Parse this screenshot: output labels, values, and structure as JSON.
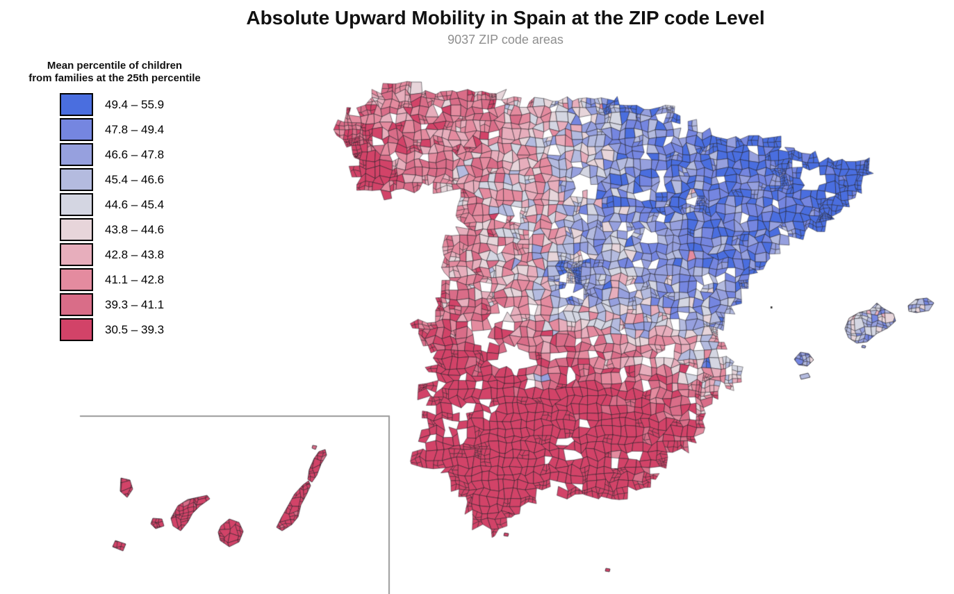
{
  "header": {
    "title": "Absolute Upward Mobility in Spain at the ZIP code Level",
    "subtitle": "9037 ZIP code areas"
  },
  "legend": {
    "title_line1": "Mean percentile of children",
    "title_line2": "from families at the 25th percentile"
  },
  "chart_data": {
    "type": "choropleth",
    "title": "Absolute Upward Mobility in Spain at the ZIP code Level",
    "subtitle": "9037 ZIP code areas",
    "variable": "Mean percentile of children from families at the 25th percentile",
    "n_areas": 9037,
    "unit": "ZIP code areas",
    "region": "Spain (mainland, Balearic Islands, Ceuta, Melilla; Canary Islands in bottom-left inset)",
    "legend_position": "upper-left",
    "value_range": [
      30.5,
      55.9
    ],
    "bins": [
      {
        "range": "49.4 – 55.9",
        "min": 49.4,
        "max": 55.9,
        "color": "#4a6edf"
      },
      {
        "range": "47.8 – 49.4",
        "min": 47.8,
        "max": 49.4,
        "color": "#7586e0"
      },
      {
        "range": "46.6 – 47.8",
        "min": 46.6,
        "max": 47.8,
        "color": "#96a0de"
      },
      {
        "range": "45.4 – 46.6",
        "min": 45.4,
        "max": 46.6,
        "color": "#b4bbdf"
      },
      {
        "range": "44.6 – 45.4",
        "min": 44.6,
        "max": 45.4,
        "color": "#d4d6e2"
      },
      {
        "range": "43.8 – 44.6",
        "min": 43.8,
        "max": 44.6,
        "color": "#e7d5da"
      },
      {
        "range": "42.8 – 43.8",
        "min": 42.8,
        "max": 43.8,
        "color": "#e7aebc"
      },
      {
        "range": "41.1 – 42.8",
        "min": 41.1,
        "max": 42.8,
        "color": "#e48b9f"
      },
      {
        "range": "39.3 – 41.1",
        "min": 39.3,
        "max": 41.1,
        "color": "#d96d88"
      },
      {
        "range": "30.5 – 39.3",
        "min": 30.5,
        "max": 39.3,
        "color": "#d24368"
      }
    ],
    "regional_pattern": [
      {
        "area": "Northeast (Catalonia, Basque Country, Navarre, Aragon)",
        "typical_values": "47-56 (blue)"
      },
      {
        "area": "North-central plateau and Madrid area",
        "typical_values": "44-50 (light blue / lavender)"
      },
      {
        "area": "Galicia (northwest)",
        "typical_values": "37-42 (dark red coast, pink inland)"
      },
      {
        "area": "North coast (Asturias, Cantabria)",
        "typical_values": "41-44 (pink)"
      },
      {
        "area": "South and southwest (Extremadura, Andalusia)",
        "typical_values": "30.5-39.3 (crimson)"
      },
      {
        "area": "Southeast (Murcia, Almeria)",
        "typical_values": "39-43 (pink-red)"
      },
      {
        "area": "Balearic Islands",
        "typical_values": "44-48 (lavender-blue)"
      },
      {
        "area": "Canary Islands (inset)",
        "typical_values": "33-39 (red)"
      }
    ]
  },
  "style": {
    "stroke_color": "#16141a",
    "inset_border_color": "#9a9a9a",
    "background": "#ffffff"
  }
}
